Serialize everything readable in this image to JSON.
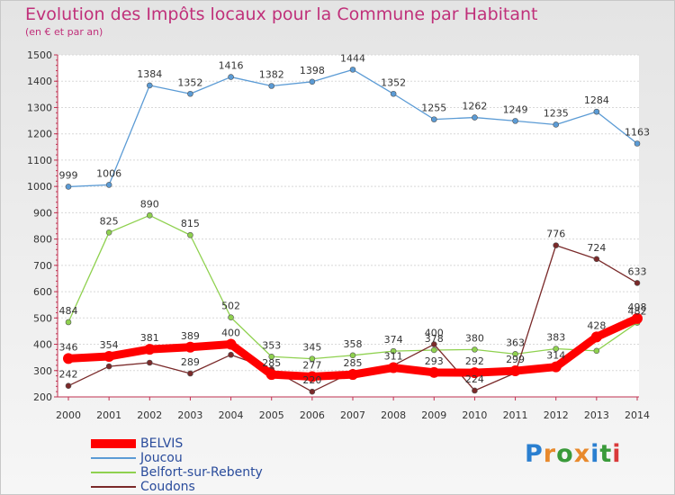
{
  "header": {
    "title": "Evolution des Impôts locaux pour la Commune par Habitant",
    "subtitle": "(en € et par an)"
  },
  "logo": {
    "text": "Proxiti",
    "letters": [
      {
        "ch": "P",
        "color": "#2a7fd0"
      },
      {
        "ch": "r",
        "color": "#e8892c"
      },
      {
        "ch": "o",
        "color": "#3a9a3a"
      },
      {
        "ch": "x",
        "color": "#e8892c"
      },
      {
        "ch": "i",
        "color": "#2a7fd0"
      },
      {
        "ch": "t",
        "color": "#3a9a3a"
      },
      {
        "ch": "i",
        "color": "#d93a3a"
      }
    ]
  },
  "chart_data": {
    "type": "line",
    "title": "Evolution des Impôts locaux pour la Commune par Habitant",
    "subtitle": "(en € et par an)",
    "xlabel": "",
    "ylabel": "",
    "x": [
      "2000",
      "2001",
      "2002",
      "2003",
      "2004",
      "2005",
      "2006",
      "2007",
      "2008",
      "2009",
      "2010",
      "2011",
      "2012",
      "2013",
      "2014"
    ],
    "ylim": [
      200,
      1500
    ],
    "yticks": [
      200,
      300,
      400,
      500,
      600,
      700,
      800,
      900,
      1000,
      1100,
      1200,
      1300,
      1400,
      1500
    ],
    "grid": "horizontal",
    "legend_position": "bottom-left",
    "series": [
      {
        "name": "BELVIS",
        "color": "#ff0000",
        "values": [
          346,
          354,
          381,
          389,
          400,
          285,
          277,
          285,
          311,
          293,
          292,
          299,
          314,
          428,
          498
        ],
        "labels": [
          "346",
          "354",
          "381",
          "389",
          "400",
          "285",
          "277",
          "285",
          "311",
          "293",
          "292",
          "299",
          "314",
          "428",
          "498"
        ]
      },
      {
        "name": "Joucou",
        "color": "#5b9bd5",
        "values": [
          999,
          1006,
          1384,
          1352,
          1416,
          1382,
          1398,
          1444,
          1352,
          1255,
          1262,
          1249,
          1235,
          1284,
          1163
        ],
        "labels": [
          "999",
          "1006",
          "1384",
          "1352",
          "1416",
          "1382",
          "1398",
          "1444",
          "1352",
          "1255",
          "1262",
          "1249",
          "1235",
          "1284",
          "1163"
        ]
      },
      {
        "name": "Belfort-sur-Rebenty",
        "color": "#8fd14f",
        "values": [
          484,
          825,
          890,
          815,
          502,
          353,
          345,
          358,
          374,
          378,
          380,
          363,
          383,
          375,
          482
        ],
        "labels": [
          "484",
          "825",
          "890",
          "815",
          "502",
          "353",
          "345",
          "358",
          "374",
          "378",
          "380",
          "363",
          "383",
          "",
          "482"
        ]
      },
      {
        "name": "Coudons",
        "color": "#7a2a2a",
        "values": [
          242,
          316,
          330,
          289,
          360,
          305,
          220,
          295,
          320,
          400,
          224,
          291,
          776,
          724,
          633
        ],
        "labels": [
          "242",
          "",
          "",
          "289",
          "",
          "",
          "220",
          "",
          "",
          "400",
          "224",
          "",
          "776",
          "724",
          "633"
        ]
      }
    ]
  }
}
